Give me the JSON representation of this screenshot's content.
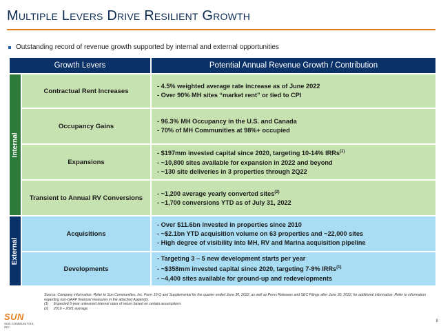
{
  "title": "Multiple Levers Drive Resilient Growth",
  "bullet": "Outstanding record of revenue growth supported by internal and external opportunities",
  "table": {
    "header_levers": "Growth Levers",
    "header_contribution": "Potential Annual Revenue Growth / Contribution",
    "group_internal": "Internal",
    "group_external": "External",
    "rows": [
      {
        "lever": "Contractual Rent Increases",
        "items": [
          "-   4.5% weighted average rate increase as of June 2022",
          "-   Over 90% MH sites “market rent” or tied to CPI"
        ]
      },
      {
        "lever": "Occupancy Gains",
        "items": [
          "-   96.3% MH Occupancy in the U.S. and Canada",
          "-   70% of MH Communities at 98%+ occupied"
        ]
      },
      {
        "lever": "Expansions",
        "items": [
          "-   $197mm invested capital since 2020, targeting 10-14% IRRs",
          "-   ~10,800 sites available for expansion in 2022 and beyond",
          "-   ~130 site deliveries in 3 properties through 2Q22"
        ],
        "sup0": "(1)"
      },
      {
        "lever": "Transient to Annual RV Conversions",
        "items": [
          "-   ~1,200 average yearly converted sites",
          "-   ~1,700 conversions YTD as of July 31, 2022"
        ],
        "sup0": "(2)"
      },
      {
        "lever": "Acquisitions",
        "items": [
          "-   Over $11.6bn invested in properties since 2010",
          "-   ~$2.1bn YTD acquisition volume on 63 properties and ~22,000 sites",
          "-   High degree of visibility into MH, RV and Marina acquisition pipeline"
        ]
      },
      {
        "lever": "Developments",
        "items": [
          "-   Targeting 3 – 5 new development starts per year",
          "-   ~$358mm invested capital since 2020, targeting 7-9% IRRs",
          "-   ~4,400 sites available for ground-up and redevelopments"
        ],
        "sup1": "(1)"
      }
    ]
  },
  "footnotes": {
    "source": "Source: Company information. Refer to Sun Communities, Inc. Form 10-Q and Supplemental for the quarter ended June 30, 2022, as well as Press Releases and SEC Filings after June 30, 2022, for additional information. Refer to information regarding non-GAAP financial measures in the attached Appendix.",
    "notes": [
      {
        "num": "(1)",
        "text": "Expected 5-year unlevered internal rates of return based on certain assumptions"
      },
      {
        "num": "(2)",
        "text": "2019 – 2021 average."
      }
    ]
  },
  "logo": {
    "name": "SUN",
    "sub": "SUN COMMUNITIES, INC."
  },
  "page_number": "8",
  "colors": {
    "navy": "#0b3268",
    "green_side": "#2e7a3a",
    "internal_bg": "#c7e2b1",
    "external_bg": "#a9ddf3",
    "accent_orange": "#e07d1a"
  }
}
